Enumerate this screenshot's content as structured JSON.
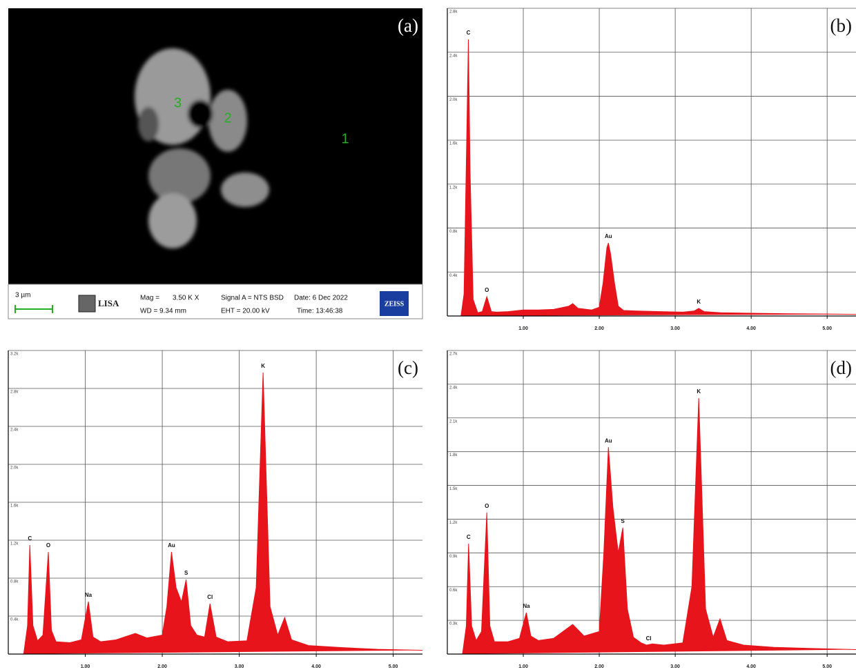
{
  "image_panel": {
    "label": "(a)",
    "points": [
      "1",
      "2",
      "3"
    ],
    "scale_bar": "3 µm",
    "logo": "LISA",
    "mag_label": "Mag =",
    "mag": "3.50 K X",
    "wd": "WD = 9.34 mm",
    "signal": "Signal A = NTS BSD",
    "date": "Date: 6 Dec 2022",
    "eht": "EHT = 20.00 kV",
    "time": "Time: 13:46:38",
    "brand": "ZEISS"
  },
  "chart_data": [
    {
      "type": "area",
      "panel_label": "(b)",
      "color": "#e8141c",
      "grid": true,
      "x": [
        0.1,
        0.18,
        0.22,
        0.25,
        0.277,
        0.3,
        0.34,
        0.4,
        0.46,
        0.52,
        0.58,
        0.65,
        0.8,
        1.0,
        1.2,
        1.4,
        1.6,
        1.65,
        1.72,
        1.9,
        2.0,
        2.05,
        2.1,
        2.12,
        2.15,
        2.2,
        2.25,
        2.32,
        2.5,
        2.8,
        3.1,
        3.25,
        3.31,
        3.38,
        3.6,
        4.0,
        4.5,
        5.0,
        5.38
      ],
      "values": [
        0,
        0,
        200,
        1400,
        2517,
        1300,
        150,
        30,
        40,
        176,
        40,
        35,
        40,
        55,
        55,
        60,
        90,
        113,
        70,
        55,
        80,
        300,
        620,
        665,
        560,
        300,
        90,
        50,
        45,
        40,
        35,
        45,
        69,
        40,
        30,
        25,
        20,
        18,
        15
      ],
      "xlim": [
        0,
        5.38
      ],
      "xticks": [
        {
          "value": 1,
          "label": "1.00"
        },
        {
          "value": 2,
          "label": "2.00"
        },
        {
          "value": 3,
          "label": "3.00"
        },
        {
          "value": 4,
          "label": "4.00"
        },
        {
          "value": 5,
          "label": "5.00"
        }
      ],
      "ylim": [
        0,
        2800
      ],
      "yticks": [
        {
          "value": 400,
          "label": "0.4k"
        },
        {
          "value": 800,
          "label": "0.8k"
        },
        {
          "value": 1200,
          "label": "1.2k"
        },
        {
          "value": 1600,
          "label": "1.6k"
        },
        {
          "value": 2000,
          "label": "2.0k"
        },
        {
          "value": 2400,
          "label": "2.4k"
        },
        {
          "value": 2800,
          "label": "2.8k"
        }
      ],
      "annotations": [
        {
          "text": "C",
          "x": 0.277,
          "y": 2517
        },
        {
          "text": "O",
          "x": 0.52,
          "y": 176
        },
        {
          "text": "Au",
          "x": 2.12,
          "y": 665
        },
        {
          "text": "K",
          "x": 3.31,
          "y": 69
        }
      ]
    },
    {
      "type": "area",
      "panel_label": "(c)",
      "color": "#e8141c",
      "grid": true,
      "x": [
        0.1,
        0.2,
        0.25,
        0.28,
        0.32,
        0.38,
        0.45,
        0.52,
        0.56,
        0.62,
        0.8,
        0.95,
        1.04,
        1.1,
        1.2,
        1.4,
        1.65,
        1.8,
        2.0,
        2.06,
        2.12,
        2.18,
        2.25,
        2.31,
        2.37,
        2.45,
        2.55,
        2.62,
        2.7,
        2.85,
        3.1,
        3.22,
        3.31,
        3.4,
        3.5,
        3.59,
        3.68,
        3.9,
        4.3,
        4.8,
        5.38
      ],
      "values": [
        0,
        0,
        300,
        1149,
        300,
        140,
        200,
        1076,
        250,
        130,
        120,
        150,
        553,
        180,
        130,
        150,
        218,
        170,
        200,
        500,
        1076,
        700,
        550,
        785,
        300,
        200,
        180,
        531,
        180,
        130,
        140,
        700,
        2967,
        500,
        200,
        385,
        150,
        90,
        70,
        50,
        40
      ],
      "xlim": [
        0,
        5.38
      ],
      "xticks": [
        {
          "value": 1,
          "label": "1.00"
        },
        {
          "value": 2,
          "label": "2.00"
        },
        {
          "value": 3,
          "label": "3.00"
        },
        {
          "value": 4,
          "label": "4.00"
        },
        {
          "value": 5,
          "label": "5.00"
        }
      ],
      "ylim": [
        0,
        3200
      ],
      "yticks": [
        {
          "value": 400,
          "label": "0.4k"
        },
        {
          "value": 800,
          "label": "0.8k"
        },
        {
          "value": 1200,
          "label": "1.2k"
        },
        {
          "value": 1600,
          "label": "1.6k"
        },
        {
          "value": 2000,
          "label": "2.0k"
        },
        {
          "value": 2400,
          "label": "2.4k"
        },
        {
          "value": 2800,
          "label": "2.8k"
        },
        {
          "value": 3200,
          "label": "3.2k"
        }
      ],
      "annotations": [
        {
          "text": "C",
          "x": 0.28,
          "y": 1149
        },
        {
          "text": "O",
          "x": 0.52,
          "y": 1076
        },
        {
          "text": "Na",
          "x": 1.04,
          "y": 553
        },
        {
          "text": "Au",
          "x": 2.12,
          "y": 1076
        },
        {
          "text": "S",
          "x": 2.31,
          "y": 785
        },
        {
          "text": "Cl",
          "x": 2.62,
          "y": 531
        },
        {
          "text": "K",
          "x": 3.31,
          "y": 2967
        }
      ]
    },
    {
      "type": "area",
      "panel_label": "(d)",
      "color": "#e8141c",
      "grid": true,
      "x": [
        0.1,
        0.2,
        0.25,
        0.28,
        0.32,
        0.38,
        0.45,
        0.52,
        0.56,
        0.62,
        0.8,
        0.95,
        1.04,
        1.1,
        1.2,
        1.4,
        1.65,
        1.8,
        2.0,
        2.06,
        2.12,
        2.18,
        2.25,
        2.31,
        2.37,
        2.45,
        2.55,
        2.62,
        2.7,
        2.85,
        3.1,
        3.22,
        3.31,
        3.4,
        3.5,
        3.59,
        3.68,
        3.9,
        4.3,
        4.8,
        5.38
      ],
      "values": [
        0,
        0,
        250,
        982,
        250,
        120,
        200,
        1258,
        250,
        110,
        110,
        140,
        368,
        160,
        120,
        140,
        264,
        160,
        200,
        900,
        1840,
        1300,
        900,
        1124,
        400,
        150,
        100,
        80,
        90,
        80,
        100,
        600,
        2276,
        400,
        150,
        313,
        120,
        80,
        60,
        50,
        40
      ],
      "xlim": [
        0,
        5.38
      ],
      "xticks": [
        {
          "value": 1,
          "label": "1.00"
        },
        {
          "value": 2,
          "label": "2.00"
        },
        {
          "value": 3,
          "label": "3.00"
        },
        {
          "value": 4,
          "label": "4.00"
        },
        {
          "value": 5,
          "label": "5.00"
        }
      ],
      "ylim": [
        0,
        2700
      ],
      "yticks": [
        {
          "value": 300,
          "label": "0.3k"
        },
        {
          "value": 600,
          "label": "0.6k"
        },
        {
          "value": 900,
          "label": "0.9k"
        },
        {
          "value": 1200,
          "label": "1.2k"
        },
        {
          "value": 1500,
          "label": "1.5k"
        },
        {
          "value": 1800,
          "label": "1.8k"
        },
        {
          "value": 2100,
          "label": "2.1k"
        },
        {
          "value": 2400,
          "label": "2.4k"
        },
        {
          "value": 2700,
          "label": "2.7k"
        }
      ],
      "annotations": [
        {
          "text": "C",
          "x": 0.28,
          "y": 982
        },
        {
          "text": "O",
          "x": 0.52,
          "y": 1258
        },
        {
          "text": "Na",
          "x": 1.04,
          "y": 368
        },
        {
          "text": "Au",
          "x": 2.12,
          "y": 1840
        },
        {
          "text": "S",
          "x": 2.31,
          "y": 1124
        },
        {
          "text": "Cl",
          "x": 2.65,
          "y": 80
        },
        {
          "text": "K",
          "x": 3.31,
          "y": 2276
        }
      ]
    }
  ]
}
